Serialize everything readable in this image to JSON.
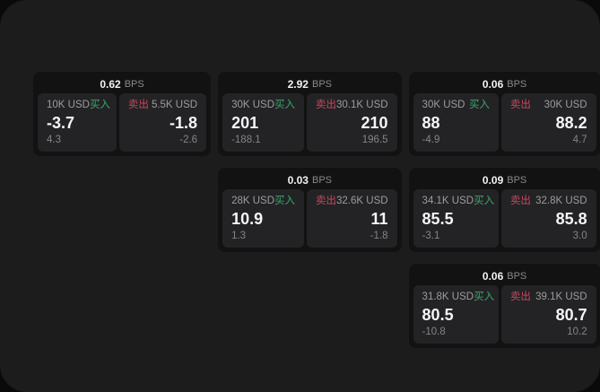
{
  "colors": {
    "page_background": "#1c1c1d",
    "card_background": "#121213",
    "panel_background": "#232325",
    "buy_green": "#3aa96e",
    "sell_red": "#c9485b",
    "primary_text": "#f5f5f5",
    "muted_text": "#8a8a8a"
  },
  "cards": [
    {
      "bps": "0.62",
      "unit": "BPS",
      "buy": {
        "amount": "10K USD",
        "label": "买入",
        "value": "-3.7",
        "sub": "4.3"
      },
      "sell": {
        "label": "卖出",
        "amount": "5.5K USD",
        "value": "-1.8",
        "sub": "-2.6"
      }
    },
    {
      "bps": "2.92",
      "unit": "BPS",
      "buy": {
        "amount": "30K USD",
        "label": "买入",
        "value": "201",
        "sub": "-188.1"
      },
      "sell": {
        "label": "卖出",
        "amount": "30.1K USD",
        "value": "210",
        "sub": "196.5"
      }
    },
    {
      "bps": "0.06",
      "unit": "BPS",
      "buy": {
        "amount": "30K USD",
        "label": "买入",
        "value": "88",
        "sub": "-4.9"
      },
      "sell": {
        "label": "卖出",
        "amount": "30K USD",
        "value": "88.2",
        "sub": "4.7"
      }
    },
    {
      "bps": "0.03",
      "unit": "BPS",
      "buy": {
        "amount": "28K USD",
        "label": "买入",
        "value": "10.9",
        "sub": "1.3"
      },
      "sell": {
        "label": "卖出",
        "amount": "32.6K USD",
        "value": "11",
        "sub": "-1.8"
      }
    },
    {
      "bps": "0.09",
      "unit": "BPS",
      "buy": {
        "amount": "34.1K USD",
        "label": "买入",
        "value": "85.5",
        "sub": "-3.1"
      },
      "sell": {
        "label": "卖出",
        "amount": "32.8K USD",
        "value": "85.8",
        "sub": "3.0"
      }
    },
    {
      "bps": "0.06",
      "unit": "BPS",
      "buy": {
        "amount": "31.8K USD",
        "label": "买入",
        "value": "80.5",
        "sub": "-10.8"
      },
      "sell": {
        "label": "卖出",
        "amount": "39.1K USD",
        "value": "80.7",
        "sub": "10.2"
      }
    }
  ]
}
